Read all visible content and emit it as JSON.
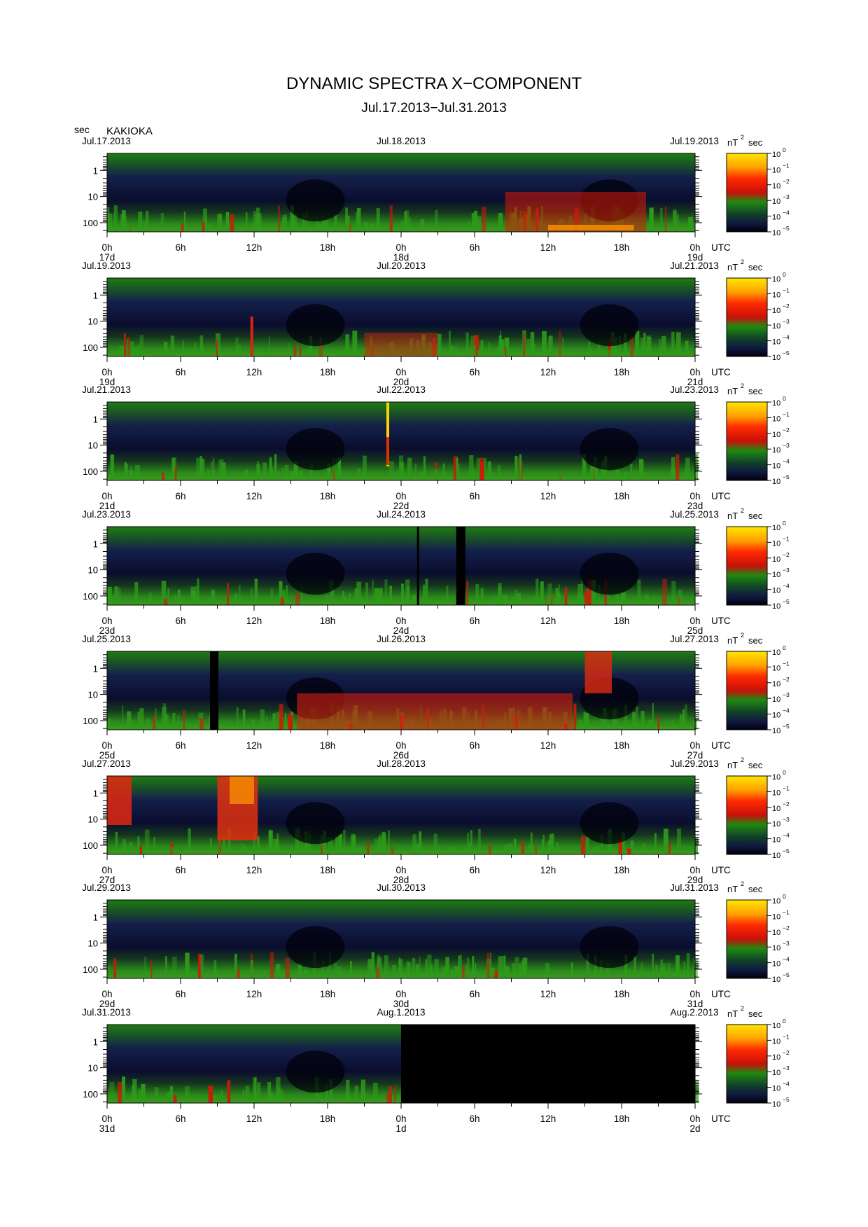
{
  "title": "DYNAMIC SPECTRA X−COMPONENT",
  "subtitle": "Jul.17.2013−Jul.31.2013",
  "y_unit": "sec",
  "station": "KAKIOKA",
  "colorbar_unit": "nT",
  "colorbar_unit_exp": "2",
  "colorbar_unit_suffix": "sec",
  "chart_data": {
    "type": "heatmap",
    "title": "DYNAMIC SPECTRA X−COMPONENT",
    "subtitle": "Jul.17.2013−Jul.31.2013",
    "ylabel": "sec",
    "yscale": "log",
    "yticks": [
      "1",
      "10",
      "100"
    ],
    "x_tick_labels": [
      "0h",
      "6h",
      "12h",
      "18h",
      "0h",
      "6h",
      "12h",
      "18h",
      "0h"
    ],
    "x_end_label": "UTC",
    "colorbar": {
      "base": "10",
      "exponents": [
        "0",
        "−1",
        "−2",
        "−3",
        "−4",
        "−5"
      ],
      "colors": [
        "#ffe000",
        "#ff6000",
        "#e8000c",
        "#1a7a10",
        "#20205a",
        "#000010"
      ]
    },
    "panels": [
      {
        "date_left": "Jul.17.2013",
        "date_mid": "Jul.18.2013",
        "date_right": "Jul.19.2013",
        "day_labels": [
          "17d",
          "18d",
          "19d"
        ],
        "activity": "moderate"
      },
      {
        "date_left": "Jul.19.2013",
        "date_mid": "Jul.20.2013",
        "date_right": "Jul.21.2013",
        "day_labels": [
          "19d",
          "20d",
          "21d"
        ],
        "activity": "moderate"
      },
      {
        "date_left": "Jul.21.2013",
        "date_mid": "Jul.22.2013",
        "date_right": "Jul.23.2013",
        "day_labels": [
          "21d",
          "22d",
          "23d"
        ],
        "activity": "spike near 22d 0h"
      },
      {
        "date_left": "Jul.23.2013",
        "date_mid": "Jul.24.2013",
        "date_right": "Jul.25.2013",
        "day_labels": [
          "23d",
          "24d",
          "25d"
        ],
        "activity": "data gaps near 24d"
      },
      {
        "date_left": "Jul.25.2013",
        "date_mid": "Jul.26.2013",
        "date_right": "Jul.27.2013",
        "day_labels": [
          "25d",
          "26d",
          "27d"
        ],
        "activity": "strong 18h–12h"
      },
      {
        "date_left": "Jul.27.2013",
        "date_mid": "Jul.28.2013",
        "date_right": "Jul.29.2013",
        "day_labels": [
          "27d",
          "28d",
          "29d"
        ],
        "activity": "strong near 27d 0h–12h"
      },
      {
        "date_left": "Jul.29.2013",
        "date_mid": "Jul.30.2013",
        "date_right": "Jul.31.2013",
        "day_labels": [
          "29d",
          "30d",
          "31d"
        ],
        "activity": "quiet"
      },
      {
        "date_left": "Jul.31.2013",
        "date_mid": "Aug.1.2013",
        "date_right": "Aug.2.2013",
        "day_labels": [
          "31d",
          "1d",
          "2d"
        ],
        "activity": "no data after 1d 0h"
      }
    ]
  }
}
